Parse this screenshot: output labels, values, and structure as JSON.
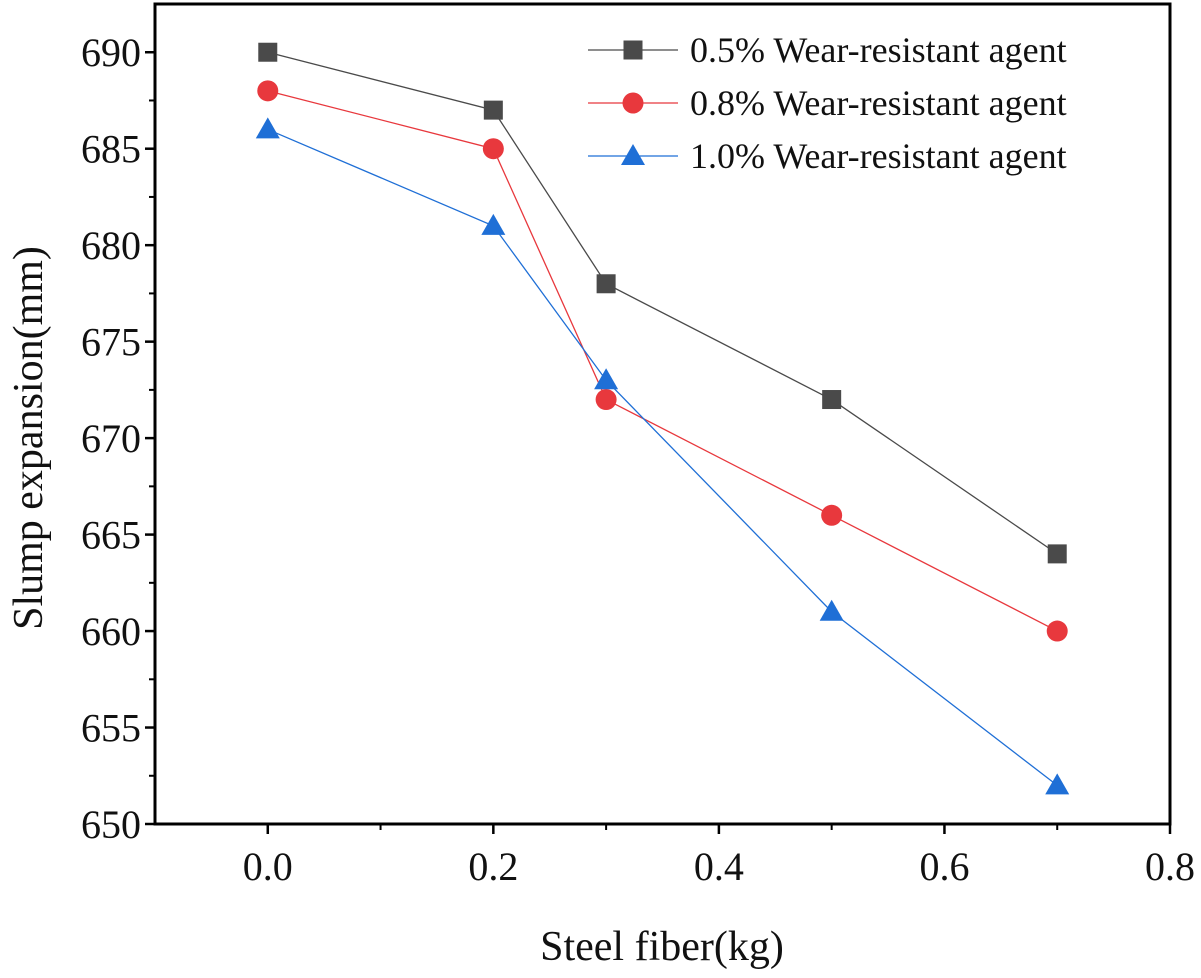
{
  "chart_data": {
    "type": "line",
    "title": "",
    "xlabel": "Steel fiber(kg)",
    "ylabel": "Slump expansion(mm)",
    "xlim": [
      -0.1,
      0.8
    ],
    "ylim": [
      650,
      692.5
    ],
    "x_ticks": [
      0.0,
      0.2,
      0.4,
      0.6,
      0.8
    ],
    "x_tick_labels": [
      "0.0",
      "0.2",
      "0.4",
      "0.6",
      "0.8"
    ],
    "y_ticks": [
      650,
      655,
      660,
      665,
      670,
      675,
      680,
      685,
      690
    ],
    "y_tick_labels": [
      "650",
      "655",
      "660",
      "665",
      "670",
      "675",
      "680",
      "685",
      "690"
    ],
    "grid": false,
    "legend_position": "top-right",
    "x": [
      0.0,
      0.2,
      0.3,
      0.5,
      0.7
    ],
    "series": [
      {
        "name": "0.5% Wear-resistant agent",
        "values": [
          690,
          687,
          678,
          672,
          664
        ],
        "color": "#4a4a4a",
        "marker": "square"
      },
      {
        "name": "0.8% Wear-resistant agent",
        "values": [
          688,
          685,
          672,
          666,
          660
        ],
        "color": "#e8383d",
        "marker": "circle"
      },
      {
        "name": "1.0% Wear-resistant agent",
        "values": [
          686,
          681,
          673,
          661,
          652
        ],
        "color": "#1f6fd6",
        "marker": "triangle"
      }
    ]
  }
}
